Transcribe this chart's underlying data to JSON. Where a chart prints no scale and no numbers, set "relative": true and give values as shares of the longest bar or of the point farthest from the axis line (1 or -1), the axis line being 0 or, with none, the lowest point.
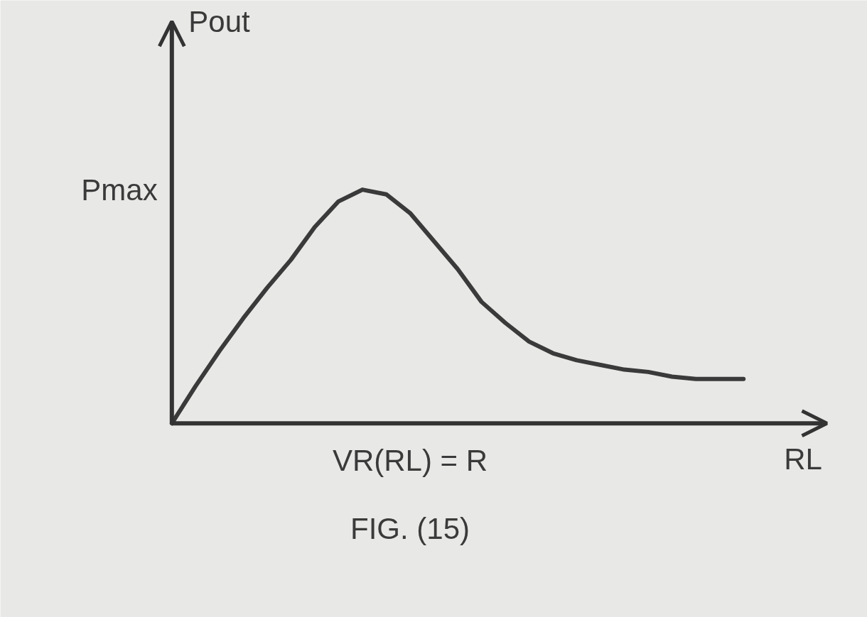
{
  "chart_data": {
    "type": "line",
    "relative": true,
    "xlabel": "RL",
    "color": "#3a3a3a",
    "categories": [
      null,
      null,
      null,
      null,
      null,
      null,
      null,
      null,
      null,
      null,
      null,
      null,
      null,
      null,
      null,
      null,
      null,
      null,
      null,
      null,
      null,
      null,
      null,
      null,
      null
    ],
    "values": [
      0,
      0.16,
      0.31,
      0.45,
      0.58,
      0.7,
      0.84,
      0.95,
      1.0,
      0.98,
      0.9,
      0.78,
      0.66,
      0.52,
      0.43,
      0.35,
      0.3,
      0.27,
      0.25,
      0.23,
      0.22,
      0.2,
      0.19,
      0.19,
      0.19
    ],
    "annotations": [
      "Pout",
      "Pmax",
      "VR(RL) = R",
      "FIG. (15)"
    ]
  }
}
